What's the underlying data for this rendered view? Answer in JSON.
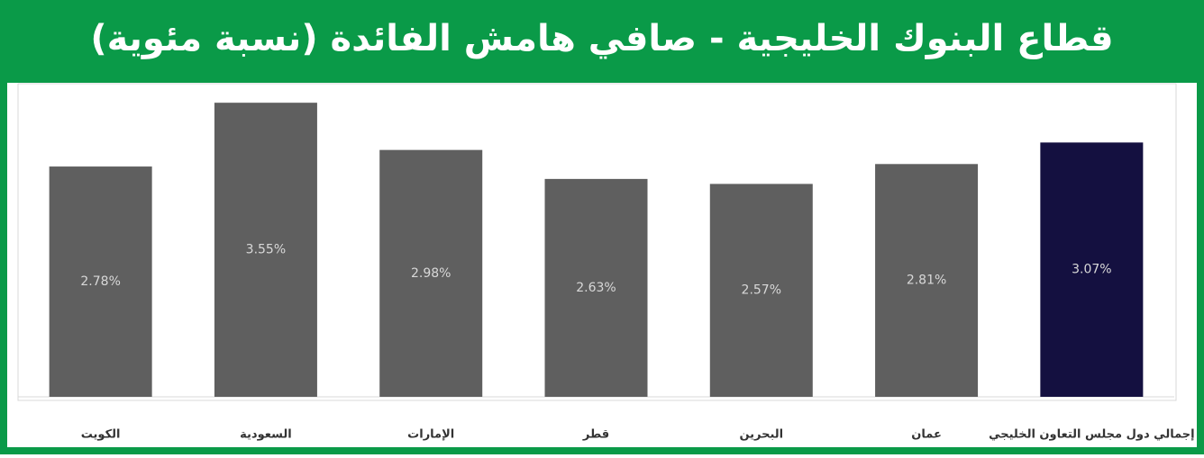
{
  "chart_data": {
    "type": "bar",
    "title": "قطاع البنوك الخليجية - صافي هامش الفائدة (نسبة مئوية)",
    "categories": [
      "الكويت",
      "السعودية",
      "الإمارات",
      "قطر",
      "البحرين",
      "عمان",
      "إجمالي دول مجلس التعاون الخليجي"
    ],
    "values": [
      2.78,
      3.55,
      2.98,
      2.63,
      2.57,
      2.81,
      3.07
    ],
    "value_labels": [
      "2.78%",
      "3.55%",
      "2.98%",
      "2.63%",
      "2.57%",
      "2.81%",
      "3.07%"
    ],
    "colors": [
      "#5f5f5f",
      "#5f5f5f",
      "#5f5f5f",
      "#5f5f5f",
      "#5f5f5f",
      "#5f5f5f",
      "#141040"
    ],
    "ylim": [
      0,
      3.78
    ]
  }
}
